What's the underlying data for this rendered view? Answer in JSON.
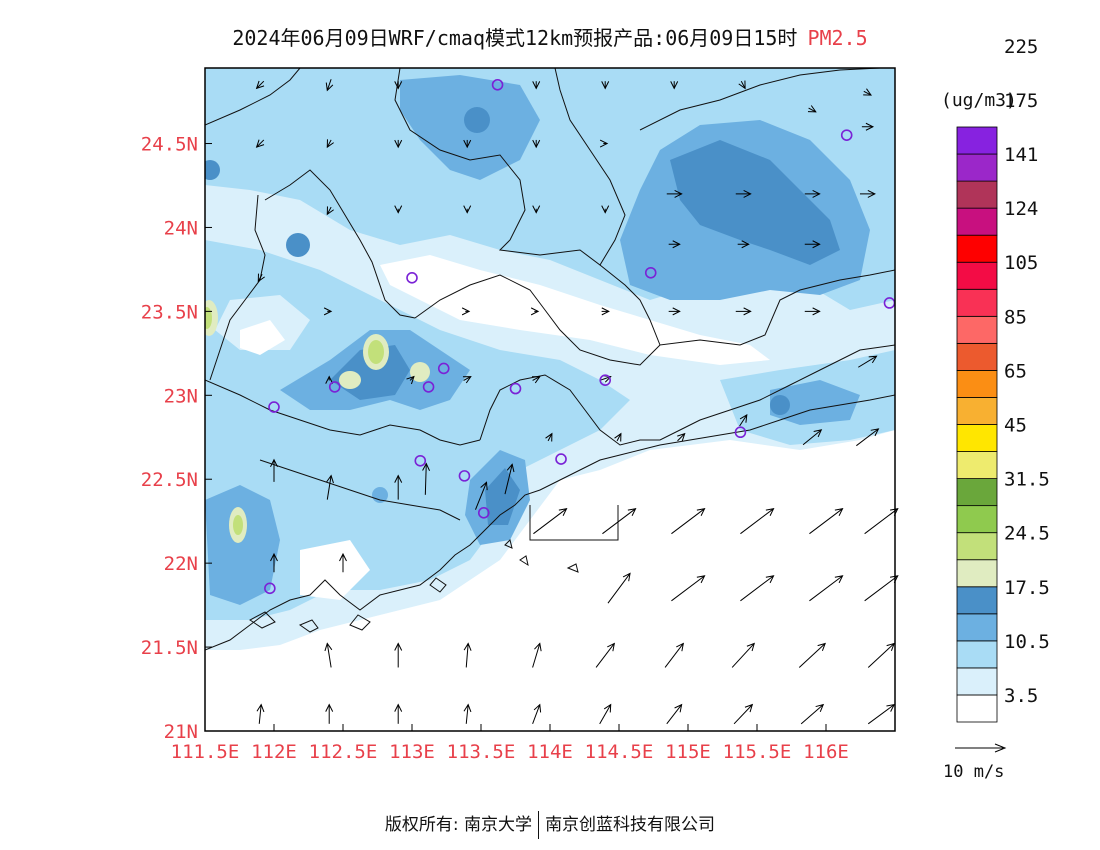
{
  "title": {
    "main": "2024年06月09日WRF/cmaq模式12km预报产品:06月09日15时",
    "variable": "PM2.5"
  },
  "unit": "(ug/m3)",
  "x_axis_labels": [
    "111.5E",
    "112E",
    "112.5E",
    "113E",
    "113.5E",
    "114E",
    "114.5E",
    "115E",
    "115.5E",
    "116E"
  ],
  "y_axis_labels": [
    "24.5N",
    "24N",
    "23.5N",
    "23N",
    "22.5N",
    "22N",
    "21.5N",
    "21N"
  ],
  "colorbar": {
    "colors": [
      "#ffffff",
      "#daf0fb",
      "#a9dcf5",
      "#6cb0e1",
      "#4a90c8",
      "#e0ecc1",
      "#c2e07a",
      "#8fca4e",
      "#6aa73b",
      "#eeeb6e",
      "#ffe600",
      "#f8b031",
      "#fb8e14",
      "#ec5a2e",
      "#fd6866",
      "#f93155",
      "#f30c45",
      "#fe0000",
      "#c8107f",
      "#b03459",
      "#9b27c9",
      "#8722e0"
    ],
    "labels": [
      "3.5",
      "10.5",
      "17.5",
      "24.5",
      "31.5",
      "45",
      "65",
      "85",
      "105",
      "124",
      "141",
      "175",
      "225"
    ]
  },
  "wind_reference": {
    "label": "10 m/s"
  },
  "footer": {
    "left": "版权所有: 南京大学",
    "right": "南京创蓝科技有限公司"
  },
  "chart_data": {
    "type": "heatmap",
    "title": "2024年06月09日WRF/cmaq模式12km预报产品:06月09日15时 PM2.5",
    "xlim": [
      111.5,
      116.5
    ],
    "ylim": [
      21.0,
      24.95
    ],
    "x_ticks": [
      111.5,
      112.0,
      112.5,
      113.0,
      113.5,
      114.0,
      114.5,
      115.0,
      115.5,
      116.0
    ],
    "y_ticks": [
      21.0,
      21.5,
      22.0,
      22.5,
      23.0,
      23.5,
      24.0,
      24.5
    ],
    "colorbar_thresholds": [
      3.5,
      10.5,
      17.5,
      24.5,
      31.5,
      45,
      65,
      85,
      105,
      124,
      141,
      175,
      225
    ],
    "stations": [
      {
        "lon": 113.62,
        "lat": 24.85
      },
      {
        "lon": 116.15,
        "lat": 24.55
      },
      {
        "lon": 113.0,
        "lat": 23.7
      },
      {
        "lon": 114.73,
        "lat": 23.73
      },
      {
        "lon": 116.46,
        "lat": 23.55
      },
      {
        "lon": 113.23,
        "lat": 23.16
      },
      {
        "lon": 112.44,
        "lat": 23.05
      },
      {
        "lon": 113.12,
        "lat": 23.05
      },
      {
        "lon": 113.75,
        "lat": 23.04
      },
      {
        "lon": 114.4,
        "lat": 23.09
      },
      {
        "lon": 112.0,
        "lat": 22.93
      },
      {
        "lon": 115.38,
        "lat": 22.78
      },
      {
        "lon": 113.06,
        "lat": 22.61
      },
      {
        "lon": 114.08,
        "lat": 22.62
      },
      {
        "lon": 113.38,
        "lat": 22.52
      },
      {
        "lon": 113.52,
        "lat": 22.3
      },
      {
        "lon": 111.97,
        "lat": 21.85
      }
    ],
    "wind_vectors_ms": [
      {
        "lon": 113.1,
        "lat": 22.5,
        "u": 0.2,
        "v": 6.5
      },
      {
        "lon": 113.5,
        "lat": 22.4,
        "u": 2.3,
        "v": 5.7
      },
      {
        "lon": 113.7,
        "lat": 22.5,
        "u": 1.5,
        "v": 6.2
      },
      {
        "lon": 114.0,
        "lat": 22.25,
        "u": 6.9,
        "v": 5.2
      },
      {
        "lon": 114.5,
        "lat": 22.25,
        "u": 6.9,
        "v": 5.2
      },
      {
        "lon": 115.0,
        "lat": 22.25,
        "u": 6.9,
        "v": 5.2
      },
      {
        "lon": 115.5,
        "lat": 22.25,
        "u": 6.9,
        "v": 5.2
      },
      {
        "lon": 116.0,
        "lat": 22.25,
        "u": 6.9,
        "v": 5.2
      },
      {
        "lon": 116.4,
        "lat": 22.25,
        "u": 6.9,
        "v": 5.2
      },
      {
        "lon": 114.5,
        "lat": 21.85,
        "u": 4.6,
        "v": 6.2
      },
      {
        "lon": 115.0,
        "lat": 21.85,
        "u": 6.9,
        "v": 5.2
      },
      {
        "lon": 115.5,
        "lat": 21.85,
        "u": 6.9,
        "v": 5.2
      },
      {
        "lon": 116.0,
        "lat": 21.85,
        "u": 6.9,
        "v": 5.2
      },
      {
        "lon": 116.4,
        "lat": 21.85,
        "u": 6.9,
        "v": 5.2
      },
      {
        "lon": 112.4,
        "lat": 21.45,
        "u": -0.8,
        "v": 5.0
      },
      {
        "lon": 112.9,
        "lat": 21.45,
        "u": 0.0,
        "v": 5.0
      },
      {
        "lon": 113.4,
        "lat": 21.45,
        "u": 0.4,
        "v": 5.0
      },
      {
        "lon": 113.9,
        "lat": 21.45,
        "u": 1.5,
        "v": 5.0
      },
      {
        "lon": 114.4,
        "lat": 21.45,
        "u": 3.8,
        "v": 5.0
      },
      {
        "lon": 114.9,
        "lat": 21.45,
        "u": 3.8,
        "v": 5.0
      },
      {
        "lon": 115.4,
        "lat": 21.45,
        "u": 4.6,
        "v": 5.0
      },
      {
        "lon": 115.9,
        "lat": 21.45,
        "u": 5.4,
        "v": 5.0
      },
      {
        "lon": 116.4,
        "lat": 21.45,
        "u": 5.4,
        "v": 5.0
      },
      {
        "lon": 111.9,
        "lat": 21.1,
        "u": 0.4,
        "v": 4.0
      },
      {
        "lon": 112.4,
        "lat": 21.1,
        "u": 0.0,
        "v": 4.0
      },
      {
        "lon": 112.9,
        "lat": 21.1,
        "u": 0.0,
        "v": 4.0
      },
      {
        "lon": 113.4,
        "lat": 21.1,
        "u": 0.4,
        "v": 4.0
      },
      {
        "lon": 113.9,
        "lat": 21.1,
        "u": 1.5,
        "v": 4.0
      },
      {
        "lon": 114.4,
        "lat": 21.1,
        "u": 2.3,
        "v": 4.0
      },
      {
        "lon": 114.9,
        "lat": 21.1,
        "u": 3.1,
        "v": 4.0
      },
      {
        "lon": 115.4,
        "lat": 21.1,
        "u": 3.8,
        "v": 4.0
      },
      {
        "lon": 115.9,
        "lat": 21.1,
        "u": 4.6,
        "v": 4.0
      },
      {
        "lon": 116.4,
        "lat": 21.1,
        "u": 5.4,
        "v": 4.0
      },
      {
        "lon": 112.4,
        "lat": 22.45,
        "u": 0.8,
        "v": 5.0
      },
      {
        "lon": 112.9,
        "lat": 22.45,
        "u": 0.0,
        "v": 5.0
      },
      {
        "lon": 112.0,
        "lat": 22.55,
        "u": 0.0,
        "v": 4.6
      },
      {
        "lon": 112.0,
        "lat": 22.0,
        "u": 0.0,
        "v": 3.8
      },
      {
        "lon": 112.5,
        "lat": 22.0,
        "u": 0.0,
        "v": 3.8
      },
      {
        "lon": 114.9,
        "lat": 24.2,
        "u": 3.1,
        "v": 0.0
      },
      {
        "lon": 115.4,
        "lat": 24.2,
        "u": 3.1,
        "v": 0.0
      },
      {
        "lon": 115.9,
        "lat": 24.2,
        "u": 3.1,
        "v": 0.0
      },
      {
        "lon": 116.3,
        "lat": 24.2,
        "u": 3.1,
        "v": 0.0
      },
      {
        "lon": 114.9,
        "lat": 23.9,
        "u": 2.3,
        "v": 0.0
      },
      {
        "lon": 115.4,
        "lat": 23.9,
        "u": 2.3,
        "v": 0.0
      },
      {
        "lon": 115.9,
        "lat": 23.9,
        "u": 3.1,
        "v": 0.0
      },
      {
        "lon": 115.4,
        "lat": 23.5,
        "u": 3.1,
        "v": 0.0
      },
      {
        "lon": 115.9,
        "lat": 23.5,
        "u": 3.1,
        "v": 0.0
      },
      {
        "lon": 116.3,
        "lat": 23.2,
        "u": 3.8,
        "v": 2.3
      },
      {
        "lon": 116.3,
        "lat": 22.75,
        "u": 4.6,
        "v": 3.5
      },
      {
        "lon": 115.9,
        "lat": 22.75,
        "u": 3.8,
        "v": 3.1
      },
      {
        "lon": 115.4,
        "lat": 22.85,
        "u": 1.5,
        "v": 2.3
      },
      {
        "lon": 115.9,
        "lat": 24.7,
        "u": 1.5,
        "v": -0.8
      },
      {
        "lon": 116.3,
        "lat": 24.6,
        "u": 2.3,
        "v": 0.0
      },
      {
        "lon": 116.3,
        "lat": 24.8,
        "u": 1.5,
        "v": -0.8
      },
      {
        "lon": 113.9,
        "lat": 24.5,
        "u": 0.0,
        "v": -1.5
      },
      {
        "lon": 114.4,
        "lat": 24.5,
        "u": 0.8,
        "v": 0.0
      },
      {
        "lon": 113.4,
        "lat": 24.5,
        "u": 0.0,
        "v": -1.5
      },
      {
        "lon": 112.9,
        "lat": 24.5,
        "u": 0.0,
        "v": -1.5
      },
      {
        "lon": 112.4,
        "lat": 24.5,
        "u": -0.8,
        "v": -1.5
      },
      {
        "lon": 111.9,
        "lat": 24.5,
        "u": -1.5,
        "v": -1.5
      },
      {
        "lon": 111.9,
        "lat": 24.85,
        "u": -1.5,
        "v": -1.5
      },
      {
        "lon": 112.4,
        "lat": 24.85,
        "u": -0.8,
        "v": -2.3
      },
      {
        "lon": 112.9,
        "lat": 24.85,
        "u": 0.0,
        "v": -1.5
      },
      {
        "lon": 113.9,
        "lat": 24.85,
        "u": 0.0,
        "v": -1.5
      },
      {
        "lon": 114.4,
        "lat": 24.85,
        "u": 0.0,
        "v": -1.5
      },
      {
        "lon": 114.9,
        "lat": 24.85,
        "u": 0.0,
        "v": -1.5
      },
      {
        "lon": 115.4,
        "lat": 24.85,
        "u": 0.8,
        "v": -1.5
      },
      {
        "lon": 112.4,
        "lat": 24.1,
        "u": -0.8,
        "v": -1.5
      },
      {
        "lon": 112.9,
        "lat": 24.1,
        "u": 0.0,
        "v": -0.8
      },
      {
        "lon": 113.4,
        "lat": 24.1,
        "u": 0.0,
        "v": -0.8
      },
      {
        "lon": 113.9,
        "lat": 24.1,
        "u": 0.0,
        "v": -0.8
      },
      {
        "lon": 114.4,
        "lat": 24.1,
        "u": 0.0,
        "v": -0.8
      },
      {
        "lon": 111.9,
        "lat": 23.7,
        "u": -0.8,
        "v": -1.5
      },
      {
        "lon": 112.4,
        "lat": 23.5,
        "u": 0.8,
        "v": 0.0
      },
      {
        "lon": 113.4,
        "lat": 23.5,
        "u": 0.8,
        "v": 0.0
      },
      {
        "lon": 113.9,
        "lat": 23.5,
        "u": 0.8,
        "v": 0.0
      },
      {
        "lon": 114.4,
        "lat": 23.5,
        "u": 1.5,
        "v": 0.0
      },
      {
        "lon": 114.9,
        "lat": 23.5,
        "u": 2.3,
        "v": 0.0
      },
      {
        "lon": 113.4,
        "lat": 23.1,
        "u": 1.5,
        "v": 0.8
      },
      {
        "lon": 113.9,
        "lat": 23.1,
        "u": 1.5,
        "v": 0.8
      },
      {
        "lon": 114.4,
        "lat": 23.1,
        "u": 2.3,
        "v": 0.8
      },
      {
        "lon": 113.0,
        "lat": 23.1,
        "u": 0.8,
        "v": 0.8
      },
      {
        "lon": 112.4,
        "lat": 23.1,
        "u": 0.0,
        "v": 0.8
      },
      {
        "lon": 114.0,
        "lat": 22.75,
        "u": 0.8,
        "v": 1.5
      },
      {
        "lon": 114.5,
        "lat": 22.75,
        "u": 0.8,
        "v": 1.5
      },
      {
        "lon": 114.95,
        "lat": 22.75,
        "u": 1.5,
        "v": 1.5
      }
    ]
  }
}
